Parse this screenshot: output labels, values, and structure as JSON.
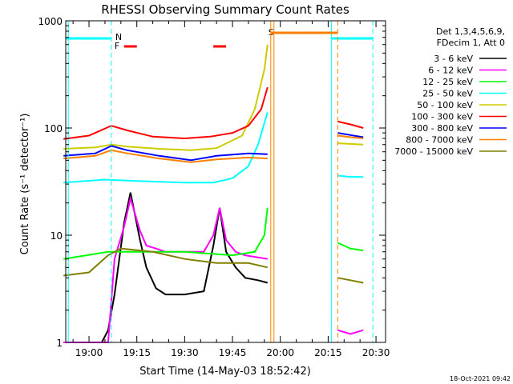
{
  "chart_data": {
    "type": "line",
    "title": "RHESSI Observing Summary Count Rates",
    "xlabel": "Start Time (14-May-03 18:52:42)",
    "ylabel": "Count Rate (s⁻¹ detector⁻¹)",
    "ylog": true,
    "ylim": [
      1,
      1000
    ],
    "xlim": [
      "18:52:42",
      "20:33:00"
    ],
    "x_ticks": [
      "19:00",
      "19:15",
      "19:30",
      "19:45",
      "20:00",
      "20:15",
      "20:30"
    ],
    "y_ticks": [
      "1",
      "10",
      "100",
      "1000"
    ],
    "legend_header": [
      "Det 1,3,4,5,6,9,",
      "FDecim 1, Att 0"
    ],
    "legend_position": "right",
    "series": [
      {
        "name": "3 - 6 keV",
        "color": "#000000",
        "x": [
          "18:52",
          "19:04",
          "19:06",
          "19:08",
          "19:11",
          "19:13",
          "19:16",
          "19:18",
          "19:21",
          "19:24",
          "19:30",
          "19:36",
          "19:39",
          "19:41",
          "19:43",
          "19:46",
          "19:49",
          "19:53",
          "19:56"
        ],
        "values": [
          1,
          1,
          1.3,
          2.8,
          13,
          25,
          9,
          5,
          3.2,
          2.8,
          2.8,
          3.0,
          8,
          18,
          7,
          5,
          4,
          3.8,
          3.6
        ]
      },
      {
        "name": "6 - 12 keV",
        "color": "#ff00ff",
        "x": [
          "18:52",
          "19:06",
          "19:08",
          "19:11",
          "19:13",
          "19:16",
          "19:18",
          "19:21",
          "19:24",
          "19:30",
          "19:36",
          "19:39",
          "19:41",
          "19:43",
          "19:46",
          "19:49",
          "19:56",
          "20:18",
          "20:22",
          "20:26"
        ],
        "values": [
          1,
          1,
          6,
          12,
          22,
          11,
          8,
          7.5,
          7,
          7,
          7,
          10,
          18,
          9,
          7,
          6.5,
          6,
          1.3,
          1.2,
          1.3
        ]
      },
      {
        "name": "12 - 25 keV",
        "color": "#00ff00",
        "x": [
          "18:52",
          "19:06",
          "19:15",
          "19:30",
          "19:45",
          "19:52",
          "19:55",
          "19:56",
          "20:18",
          "20:22",
          "20:26"
        ],
        "values": [
          6,
          7,
          7,
          7,
          6.5,
          7,
          10,
          18,
          8.5,
          7.5,
          7.2
        ]
      },
      {
        "name": "25 - 50 keV",
        "color": "#00ffff",
        "x": [
          "18:52",
          "19:05",
          "19:15",
          "19:30",
          "19:39",
          "19:45",
          "19:50",
          "19:53",
          "19:56",
          "20:18",
          "20:22",
          "20:26"
        ],
        "values": [
          31,
          33,
          32,
          31,
          31,
          34,
          44,
          70,
          140,
          36,
          35,
          35
        ]
      },
      {
        "name": "50 - 100 keV",
        "color": "#cccc00",
        "x": [
          "18:52",
          "19:02",
          "19:07",
          "19:12",
          "19:22",
          "19:32",
          "19:40",
          "19:48",
          "19:52",
          "19:55",
          "19:56",
          "20:18",
          "20:22",
          "20:26"
        ],
        "values": [
          64,
          66,
          70,
          67,
          64,
          62,
          65,
          85,
          150,
          350,
          600,
          72,
          71,
          70
        ]
      },
      {
        "name": "100 - 300 keV",
        "color": "#ff0000",
        "x": [
          "18:52",
          "19:00",
          "19:07",
          "19:12",
          "19:20",
          "19:30",
          "19:38",
          "19:45",
          "19:50",
          "19:54",
          "19:56",
          "20:18",
          "20:22",
          "20:26"
        ],
        "values": [
          79,
          85,
          105,
          95,
          83,
          80,
          83,
          90,
          105,
          150,
          240,
          115,
          108,
          100
        ]
      },
      {
        "name": "300 - 800 keV",
        "color": "#0000ff",
        "x": [
          "18:52",
          "19:02",
          "19:07",
          "19:12",
          "19:22",
          "19:32",
          "19:40",
          "19:50",
          "19:56",
          "20:18",
          "20:22",
          "20:26"
        ],
        "values": [
          55,
          58,
          68,
          62,
          55,
          50,
          55,
          58,
          57,
          90,
          86,
          82
        ]
      },
      {
        "name": "800 - 7000 keV",
        "color": "#ff8000",
        "x": [
          "18:52",
          "19:02",
          "19:07",
          "19:12",
          "19:22",
          "19:32",
          "19:40",
          "19:50",
          "19:56",
          "20:18",
          "20:22",
          "20:26"
        ],
        "values": [
          52,
          55,
          62,
          58,
          52,
          48,
          51,
          53,
          52,
          85,
          82,
          80
        ]
      },
      {
        "name": "7000 - 15000 keV",
        "color": "#808000",
        "x": [
          "18:52",
          "19:00",
          "19:06",
          "19:10",
          "19:20",
          "19:30",
          "19:40",
          "19:50",
          "19:56",
          "20:18",
          "20:22",
          "20:26"
        ],
        "values": [
          4.2,
          4.5,
          6.5,
          7.5,
          7.0,
          6.0,
          5.5,
          5.5,
          5.0,
          4.0,
          3.8,
          3.6
        ]
      }
    ],
    "annotations": {
      "night_solid_lines": [
        "18:53:30",
        "20:16:00"
      ],
      "night_dashed_lines": [
        "19:07:00",
        "20:29:00"
      ],
      "night_labels": [
        {
          "text": "N",
          "time": "19:07:30"
        }
      ],
      "flare_label": {
        "text": "F",
        "time": "19:09:00"
      },
      "flare_intervals": [
        [
          "19:11",
          "19:15"
        ],
        [
          "19:39",
          "19:43"
        ]
      ],
      "saa_label": {
        "text": "S",
        "time": "19:57:00"
      },
      "saa_interval": [
        "19:57",
        "20:18"
      ],
      "saa_lines_solid": [
        "19:57",
        "19:58"
      ],
      "saa_line_dashed": "20:18",
      "data_gaps": [
        [
          "19:57",
          "20:18"
        ]
      ]
    },
    "timestamp": "18-Oct-2021 09:42"
  }
}
